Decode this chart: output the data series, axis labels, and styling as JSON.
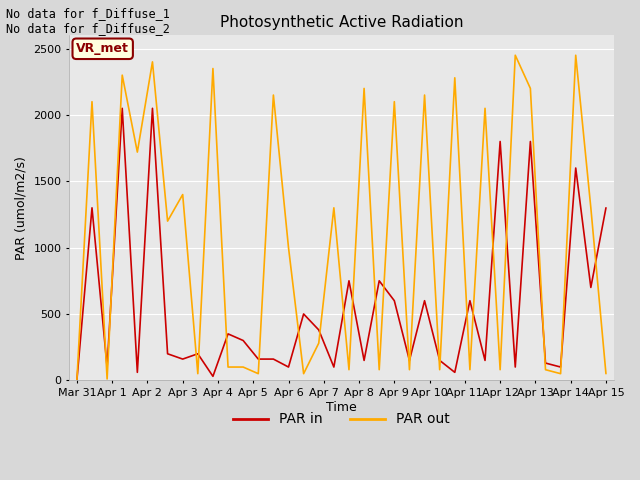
{
  "title": "Photosynthetic Active Radiation",
  "xlabel": "Time",
  "ylabel": "PAR (umol/m2/s)",
  "annotation_lines": [
    "No data for f_Diffuse_1",
    "No data for f_Diffuse_2"
  ],
  "legend_label": "VR_met",
  "fig_bg_color": "#d8d8d8",
  "plot_bg_color": "#e8e8e8",
  "grid_color": "#ffffff",
  "x_ticks": [
    "Mar 31",
    "Apr 1",
    "Apr 2",
    "Apr 3",
    "Apr 4",
    "Apr 5",
    "Apr 6",
    "Apr 7",
    "Apr 8",
    "Apr 9",
    "Apr 10",
    "Apr 11",
    "Apr 12",
    "Apr 13",
    "Apr 14",
    "Apr 15"
  ],
  "par_in": [
    0,
    1300,
    100,
    2050,
    60,
    2050,
    200,
    160,
    200,
    30,
    350,
    300,
    160,
    160,
    100,
    500,
    380,
    100,
    750,
    150,
    750,
    600,
    150,
    600,
    150,
    60,
    600,
    150,
    1800,
    100,
    1800,
    130,
    100,
    1600,
    700,
    1300
  ],
  "par_out": [
    0,
    2100,
    10,
    2300,
    1720,
    2400,
    1200,
    1400,
    50,
    2350,
    100,
    100,
    50,
    2150,
    1000,
    50,
    280,
    1300,
    80,
    2200,
    80,
    2100,
    80,
    2150,
    80,
    2280,
    80,
    2050,
    80,
    2450,
    2200,
    80,
    50,
    2450,
    1300,
    50
  ],
  "par_in_color": "#cc0000",
  "par_out_color": "#ffaa00",
  "ylim": [
    0,
    2600
  ],
  "n_points": 36,
  "n_dates": 16
}
